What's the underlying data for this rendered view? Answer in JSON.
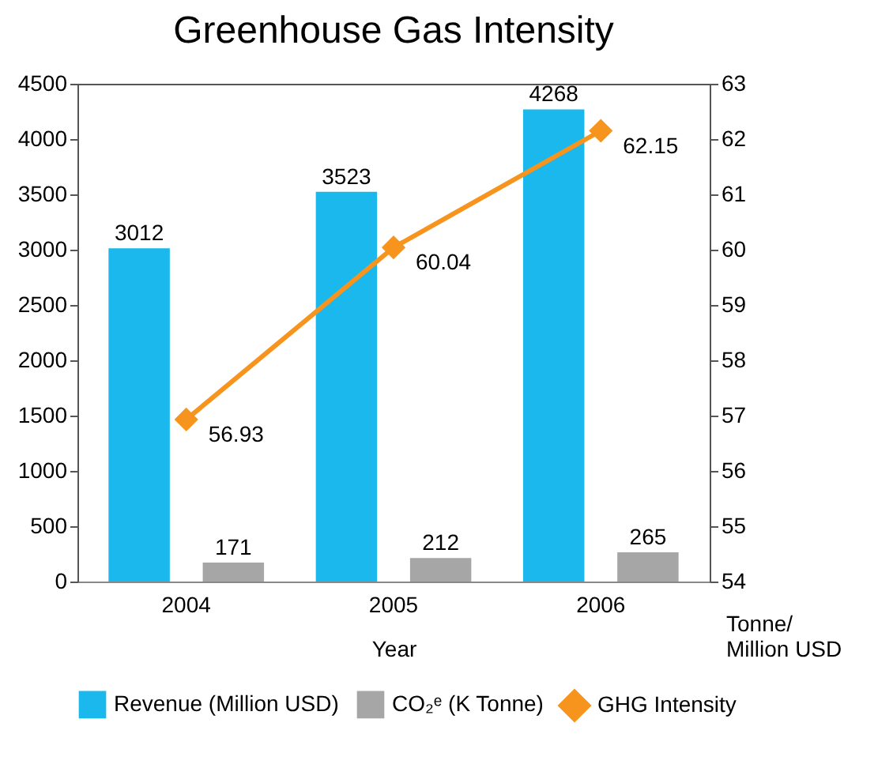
{
  "chart_data": {
    "type": "bar",
    "title": "Greenhouse Gas Intensity",
    "xlabel": "Year",
    "y2label": "Tonne/\nMillion USD",
    "categories": [
      "2004",
      "2005",
      "2006"
    ],
    "series": [
      {
        "name": "Revenue (Million USD)",
        "color": "#1ab8ec",
        "values": [
          3012,
          3523,
          4268
        ]
      },
      {
        "name": "CO₂ᵉ (K Tonne)",
        "color": "#a6a6a6",
        "values": [
          171,
          212,
          265
        ]
      },
      {
        "name": "GHG Intensity",
        "color": "#f7941d",
        "type": "line",
        "axis": "y2",
        "values": [
          56.93,
          60.04,
          62.15
        ]
      }
    ],
    "ylim": [
      0,
      4500
    ],
    "yticks": [
      0,
      500,
      1000,
      1500,
      2000,
      2500,
      3000,
      3500,
      4000,
      4500
    ],
    "y2lim": [
      54,
      63
    ],
    "y2ticks": [
      54,
      55,
      56,
      57,
      58,
      59,
      60,
      61,
      62,
      63
    ],
    "data_labels": true,
    "legend": "bottom",
    "grid": false,
    "marker": "diamond",
    "line_style": "solid"
  }
}
